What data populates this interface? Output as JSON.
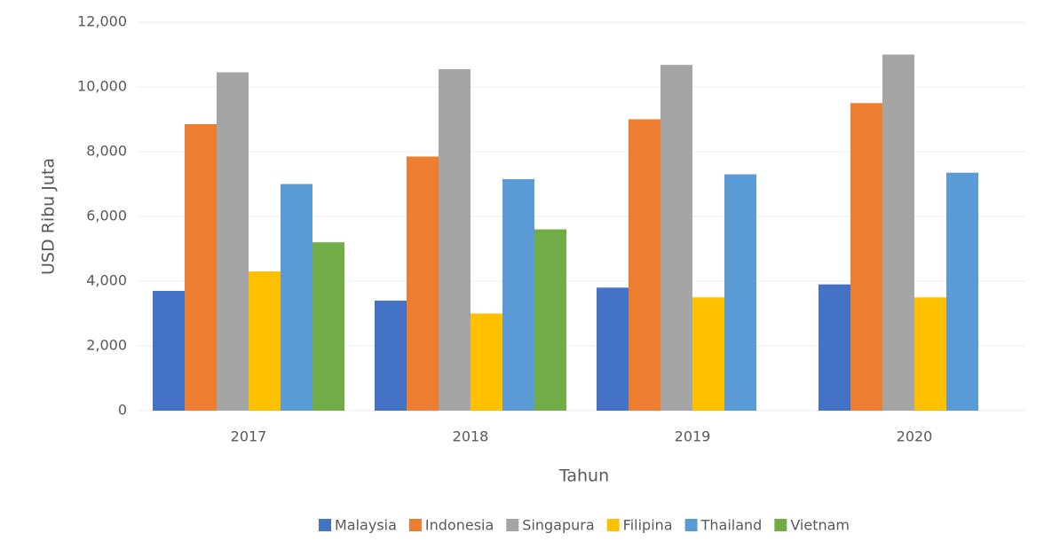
{
  "chart_data": {
    "type": "bar",
    "categories": [
      "2017",
      "2018",
      "2019",
      "2020"
    ],
    "series": [
      {
        "name": "Malaysia",
        "color": "#4472c4",
        "values": [
          3700,
          3400,
          3800,
          3900
        ]
      },
      {
        "name": "Indonesia",
        "color": "#ed7d31",
        "values": [
          8850,
          7850,
          9000,
          9500
        ]
      },
      {
        "name": "Singapura",
        "color": "#a5a5a5",
        "values": [
          10450,
          10550,
          10680,
          11000
        ]
      },
      {
        "name": "Filipina",
        "color": "#ffc000",
        "values": [
          4300,
          3000,
          3500,
          3500
        ]
      },
      {
        "name": "Thailand",
        "color": "#5b9bd5",
        "values": [
          7000,
          7150,
          7300,
          7350
        ]
      },
      {
        "name": "Vietnam",
        "color": "#70ad47",
        "values": [
          5200,
          5600,
          null,
          null
        ]
      }
    ],
    "x_label": "Tahun",
    "y_label": "USD Ribu Juta",
    "ylim": [
      0,
      12000
    ],
    "yticks": [
      0,
      {
        "value": 2000,
        "label": "2,000"
      },
      {
        "value": 4000,
        "label": "4,000"
      },
      {
        "value": 6000,
        "label": "6,000"
      },
      {
        "value": 8000,
        "label": "8,000"
      },
      {
        "value": 10000,
        "label": "10,000"
      },
      {
        "value": 12000,
        "label": "12,000"
      }
    ],
    "grid": true,
    "legend": "bottom"
  }
}
